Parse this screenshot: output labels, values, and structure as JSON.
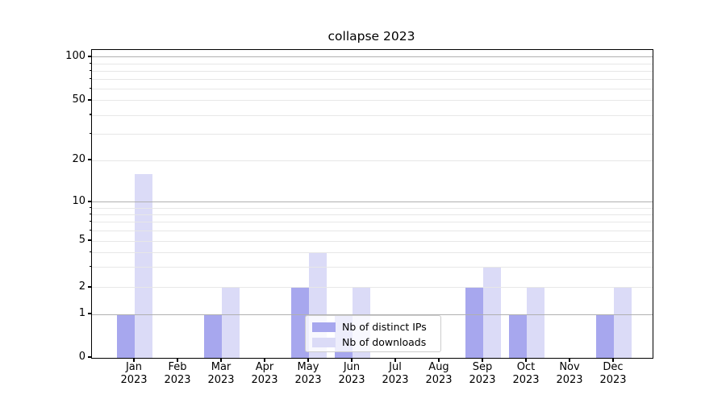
{
  "title": "collapse 2023",
  "chart_data": {
    "type": "bar",
    "title": "collapse 2023",
    "categories": [
      "Jan 2023",
      "Feb 2023",
      "Mar 2023",
      "Apr 2023",
      "May 2023",
      "Jun 2023",
      "Jul 2023",
      "Aug 2023",
      "Sep 2023",
      "Oct 2023",
      "Nov 2023",
      "Dec 2023"
    ],
    "category_month": [
      "Jan",
      "Feb",
      "Mar",
      "Apr",
      "May",
      "Jun",
      "Jul",
      "Aug",
      "Sep",
      "Oct",
      "Nov",
      "Dec"
    ],
    "category_year": "2023",
    "series": [
      {
        "name": "Nb of distinct IPs",
        "color": "#a7a7ee",
        "values": [
          1,
          0,
          1,
          0,
          2,
          1,
          0,
          0,
          2,
          1,
          0,
          1
        ]
      },
      {
        "name": "Nb of downloads",
        "color": "#dbdbf7",
        "values": [
          16,
          0,
          2,
          0,
          4,
          2,
          0,
          0,
          3,
          2,
          0,
          2
        ]
      }
    ],
    "yscale": "symlog",
    "yticks": [
      0,
      1,
      2,
      5,
      10,
      20,
      50,
      100
    ],
    "major_grid_values": [
      1,
      10,
      100
    ],
    "minor_grid_values": [
      3,
      4,
      6,
      7,
      8,
      9,
      30,
      40,
      60,
      70,
      80,
      90
    ],
    "ylim": [
      0,
      112
    ],
    "grid": true,
    "legend_position": "lower center"
  },
  "colors": {
    "major_grid": "#b0b0b0",
    "minor_grid": "#e7e7e7",
    "spine": "#000000",
    "background": "#ffffff"
  }
}
